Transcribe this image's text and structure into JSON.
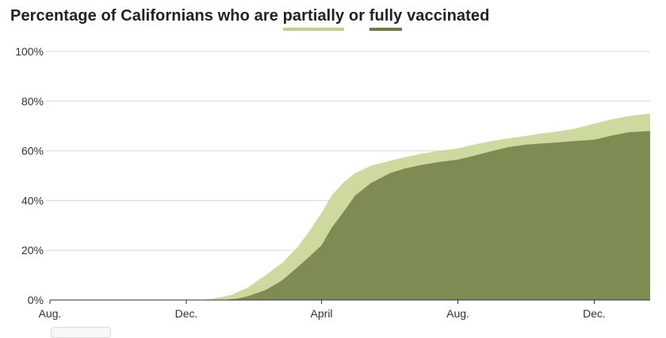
{
  "title": {
    "prefix": "Percentage of Californians who are",
    "partial_word": "partially",
    "connector": "or",
    "full_word": "fully",
    "suffix": "vaccinated"
  },
  "colors": {
    "partially": "#cdd99f",
    "fully": "#7e8b52",
    "partially_key": "#c2d08e",
    "fully_key": "#6e7b42",
    "gridline": "#d9d9d9",
    "axis": "#333333"
  },
  "chart_data": {
    "type": "area",
    "title": "Percentage of Californians who are partially or fully vaccinated",
    "xlabel": "",
    "ylabel": "",
    "x_ticks": [
      "Aug.",
      "Dec.",
      "April",
      "Aug.",
      "Dec."
    ],
    "y_ticks": [
      "0%",
      "20%",
      "40%",
      "60%",
      "80%",
      "100%"
    ],
    "ylim": [
      0,
      100
    ],
    "grid": true,
    "legend": "inline-title",
    "x_domain": [
      "2020-08-01",
      "2022-01-20"
    ],
    "series": [
      {
        "name": "partially",
        "dates": [
          "2020-08-01",
          "2020-12-14",
          "2020-12-25",
          "2021-01-10",
          "2021-01-25",
          "2021-02-10",
          "2021-02-25",
          "2021-03-10",
          "2021-03-20",
          "2021-04-01",
          "2021-04-10",
          "2021-04-20",
          "2021-05-01",
          "2021-05-15",
          "2021-06-01",
          "2021-06-15",
          "2021-07-01",
          "2021-07-15",
          "2021-08-01",
          "2021-08-15",
          "2021-09-01",
          "2021-09-15",
          "2021-10-01",
          "2021-10-15",
          "2021-11-01",
          "2021-11-15",
          "2021-12-01",
          "2021-12-15",
          "2022-01-01",
          "2022-01-20"
        ],
        "values": [
          0,
          0,
          0.5,
          2,
          5,
          10,
          15,
          21,
          27,
          35,
          42,
          47,
          51,
          54,
          56,
          57.5,
          59,
          60,
          61,
          62.5,
          64,
          65,
          66,
          67,
          68,
          69,
          71,
          72.5,
          74,
          75
        ]
      },
      {
        "name": "fully",
        "dates": [
          "2020-08-01",
          "2021-01-01",
          "2021-01-15",
          "2021-01-25",
          "2021-02-10",
          "2021-02-25",
          "2021-03-10",
          "2021-03-20",
          "2021-04-01",
          "2021-04-10",
          "2021-04-20",
          "2021-05-01",
          "2021-05-15",
          "2021-06-01",
          "2021-06-15",
          "2021-07-01",
          "2021-07-15",
          "2021-08-01",
          "2021-08-15",
          "2021-09-01",
          "2021-09-15",
          "2021-10-01",
          "2021-10-15",
          "2021-11-01",
          "2021-11-15",
          "2021-12-01",
          "2021-12-15",
          "2022-01-01",
          "2022-01-20"
        ],
        "values": [
          0,
          0,
          0.5,
          1.5,
          4,
          8,
          13,
          17,
          22,
          29,
          35,
          42,
          47,
          51,
          53,
          54.5,
          55.5,
          56.5,
          58,
          60,
          61.5,
          62.5,
          63,
          63.5,
          64,
          64.5,
          66,
          67.5,
          68
        ]
      }
    ]
  }
}
